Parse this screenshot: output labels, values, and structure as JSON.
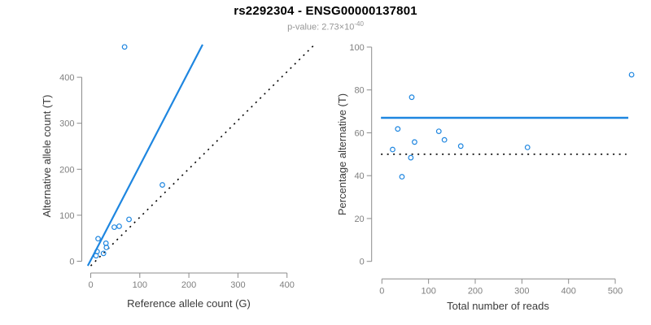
{
  "header": {
    "title": "rs2292304 - ENSG00000137801",
    "pvalue_prefix": "p-value: 2.73×10",
    "pvalue_exponent": "-40"
  },
  "colors": {
    "points": "#1e86e0",
    "fit_line": "#1e86e0",
    "reference_line": "#000000",
    "axis": "#8c8c8c",
    "tick_text": "#7f7f7f",
    "axis_label_text": "#3a3a3a"
  },
  "chart_data": [
    {
      "type": "scatter",
      "name": "allele-count-scatter",
      "xlabel": "Reference allele count (G)",
      "ylabel": "Alternative allele count (T)",
      "xlim": [
        0,
        460
      ],
      "ylim": [
        0,
        480
      ],
      "xticks": [
        0,
        100,
        200,
        300,
        400
      ],
      "yticks": [
        0,
        100,
        200,
        300,
        400
      ],
      "grid": false,
      "points": [
        [
          69,
          466
        ],
        [
          15,
          49
        ],
        [
          13,
          21
        ],
        [
          48,
          74
        ],
        [
          31,
          39
        ],
        [
          58,
          76
        ],
        [
          78,
          91
        ],
        [
          146,
          166
        ],
        [
          11,
          12
        ],
        [
          32,
          30
        ],
        [
          26,
          17
        ]
      ],
      "lines": [
        {
          "name": "fitted-ratio-line",
          "style": "solid",
          "color": "#1e86e0",
          "width": 2.2,
          "from": [
            -6,
            -10
          ],
          "to": [
            228,
            471
          ]
        },
        {
          "name": "identity-line",
          "style": "dotted",
          "color": "#000000",
          "width": 1.6,
          "from": [
            0,
            -10
          ],
          "to": [
            457,
            472
          ]
        }
      ]
    },
    {
      "type": "scatter",
      "name": "percentage-vs-reads-scatter",
      "xlabel": "Total number of reads",
      "ylabel": "Percentage alternative (T)",
      "xlim": [
        0,
        540
      ],
      "ylim": [
        0,
        100
      ],
      "xticks": [
        0,
        100,
        200,
        300,
        400,
        500
      ],
      "yticks": [
        0,
        20,
        40,
        60,
        80,
        100
      ],
      "grid": false,
      "points": [
        [
          535,
          87.1
        ],
        [
          64,
          76.6
        ],
        [
          34,
          61.8
        ],
        [
          122,
          60.7
        ],
        [
          70,
          55.7
        ],
        [
          134,
          56.7
        ],
        [
          169,
          53.8
        ],
        [
          312,
          53.2
        ],
        [
          23,
          52.2
        ],
        [
          62,
          48.4
        ],
        [
          43,
          39.5
        ]
      ],
      "lines": [
        {
          "name": "mean-percentage-line",
          "style": "solid",
          "color": "#1e86e0",
          "width": 2.4,
          "from": [
            -2,
            67
          ],
          "to": [
            528,
            67
          ]
        },
        {
          "name": "fifty-percent-line",
          "style": "dotted",
          "color": "#000000",
          "width": 1.6,
          "from": [
            -2,
            50
          ],
          "to": [
            524,
            50
          ]
        }
      ]
    }
  ]
}
